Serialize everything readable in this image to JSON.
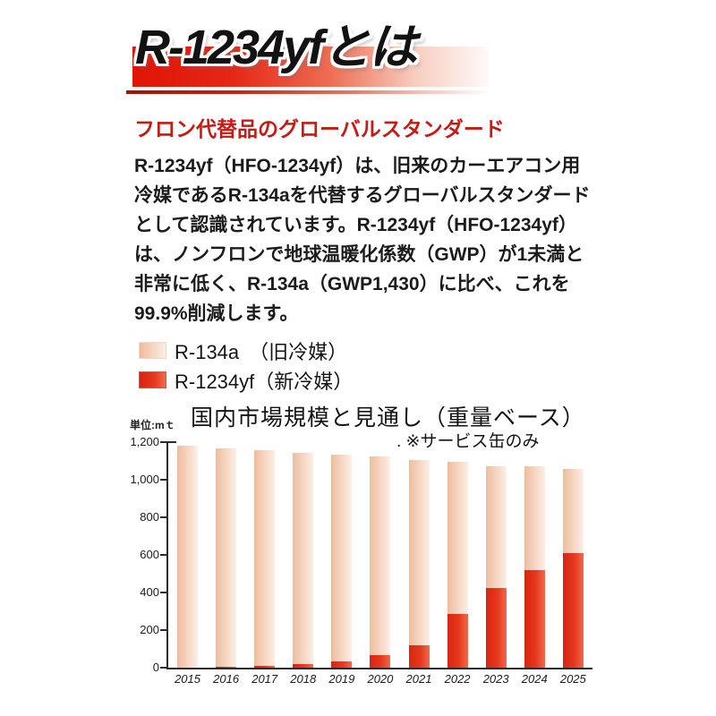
{
  "header": {
    "title": "R-1234yfとは"
  },
  "article": {
    "subtitle": "フロン代替品のグローバルスタンダード",
    "body_lines": [
      "R-1234yf（HFO-1234yf）は、旧来のカーエアコン用",
      "冷媒であるR-134aを代替するグローバルスタンダード",
      "として認識されています。R-1234yf（HFO-1234yf）",
      "は、ノンフロンで地球温暖化係数（GWP）が1未満と",
      "非常に低く、R-134a（GWP1,430）に比べ、これを",
      "99.9%削減します。"
    ]
  },
  "legend": {
    "items": [
      {
        "label": "R-134a　（旧冷媒）",
        "swatch": "old-refrigerant-swatch"
      },
      {
        "label": "R-1234yf（新冷媒）",
        "swatch": "new-refrigerant-swatch"
      }
    ]
  },
  "chart": {
    "title": "国内市場規模と見通し（重量ベース）",
    "note": ". ※サービス缶のみ",
    "unit_label": "単位:mｔ"
  },
  "colors": {
    "accent_red": "#c51b15",
    "banner_red": "#e01407",
    "bar_old": "#f3cdb4",
    "bar_new": "#e6381c"
  },
  "chart_data": {
    "type": "bar",
    "stacked": true,
    "title": "国内市場規模と見通し（重量ベース）",
    "note": ". ※サービス缶のみ",
    "unit": "単位:mｔ",
    "xlabel": "",
    "ylabel": "mｔ",
    "ylim": [
      0,
      1200
    ],
    "grid": false,
    "legend_position": "above-chart",
    "categories": [
      "2015",
      "2016",
      "2017",
      "2018",
      "2019",
      "2020",
      "2021",
      "2022",
      "2023",
      "2024",
      "2025"
    ],
    "series": [
      {
        "name": "R-134a（旧冷媒）",
        "color": "#f3cdb4",
        "values": [
          1180,
          1160,
          1145,
          1125,
          1100,
          1060,
          985,
          810,
          645,
          550,
          445
        ]
      },
      {
        "name": "R-1234yf（新冷媒）",
        "color": "#e6381c",
        "values": [
          0,
          5,
          10,
          20,
          35,
          65,
          120,
          285,
          425,
          520,
          610
        ]
      }
    ],
    "totals": [
      1180,
      1165,
      1155,
      1145,
      1135,
      1125,
      1105,
      1095,
      1070,
      1070,
      1055
    ],
    "yticks": [
      {
        "value": 0,
        "label": "0"
      },
      {
        "value": 200,
        "label": "200"
      },
      {
        "value": 400,
        "label": "400"
      },
      {
        "value": 600,
        "label": "600"
      },
      {
        "value": 800,
        "label": "800"
      },
      {
        "value": 1000,
        "label": "1,000"
      },
      {
        "value": 1200,
        "label": "1,200"
      }
    ]
  }
}
